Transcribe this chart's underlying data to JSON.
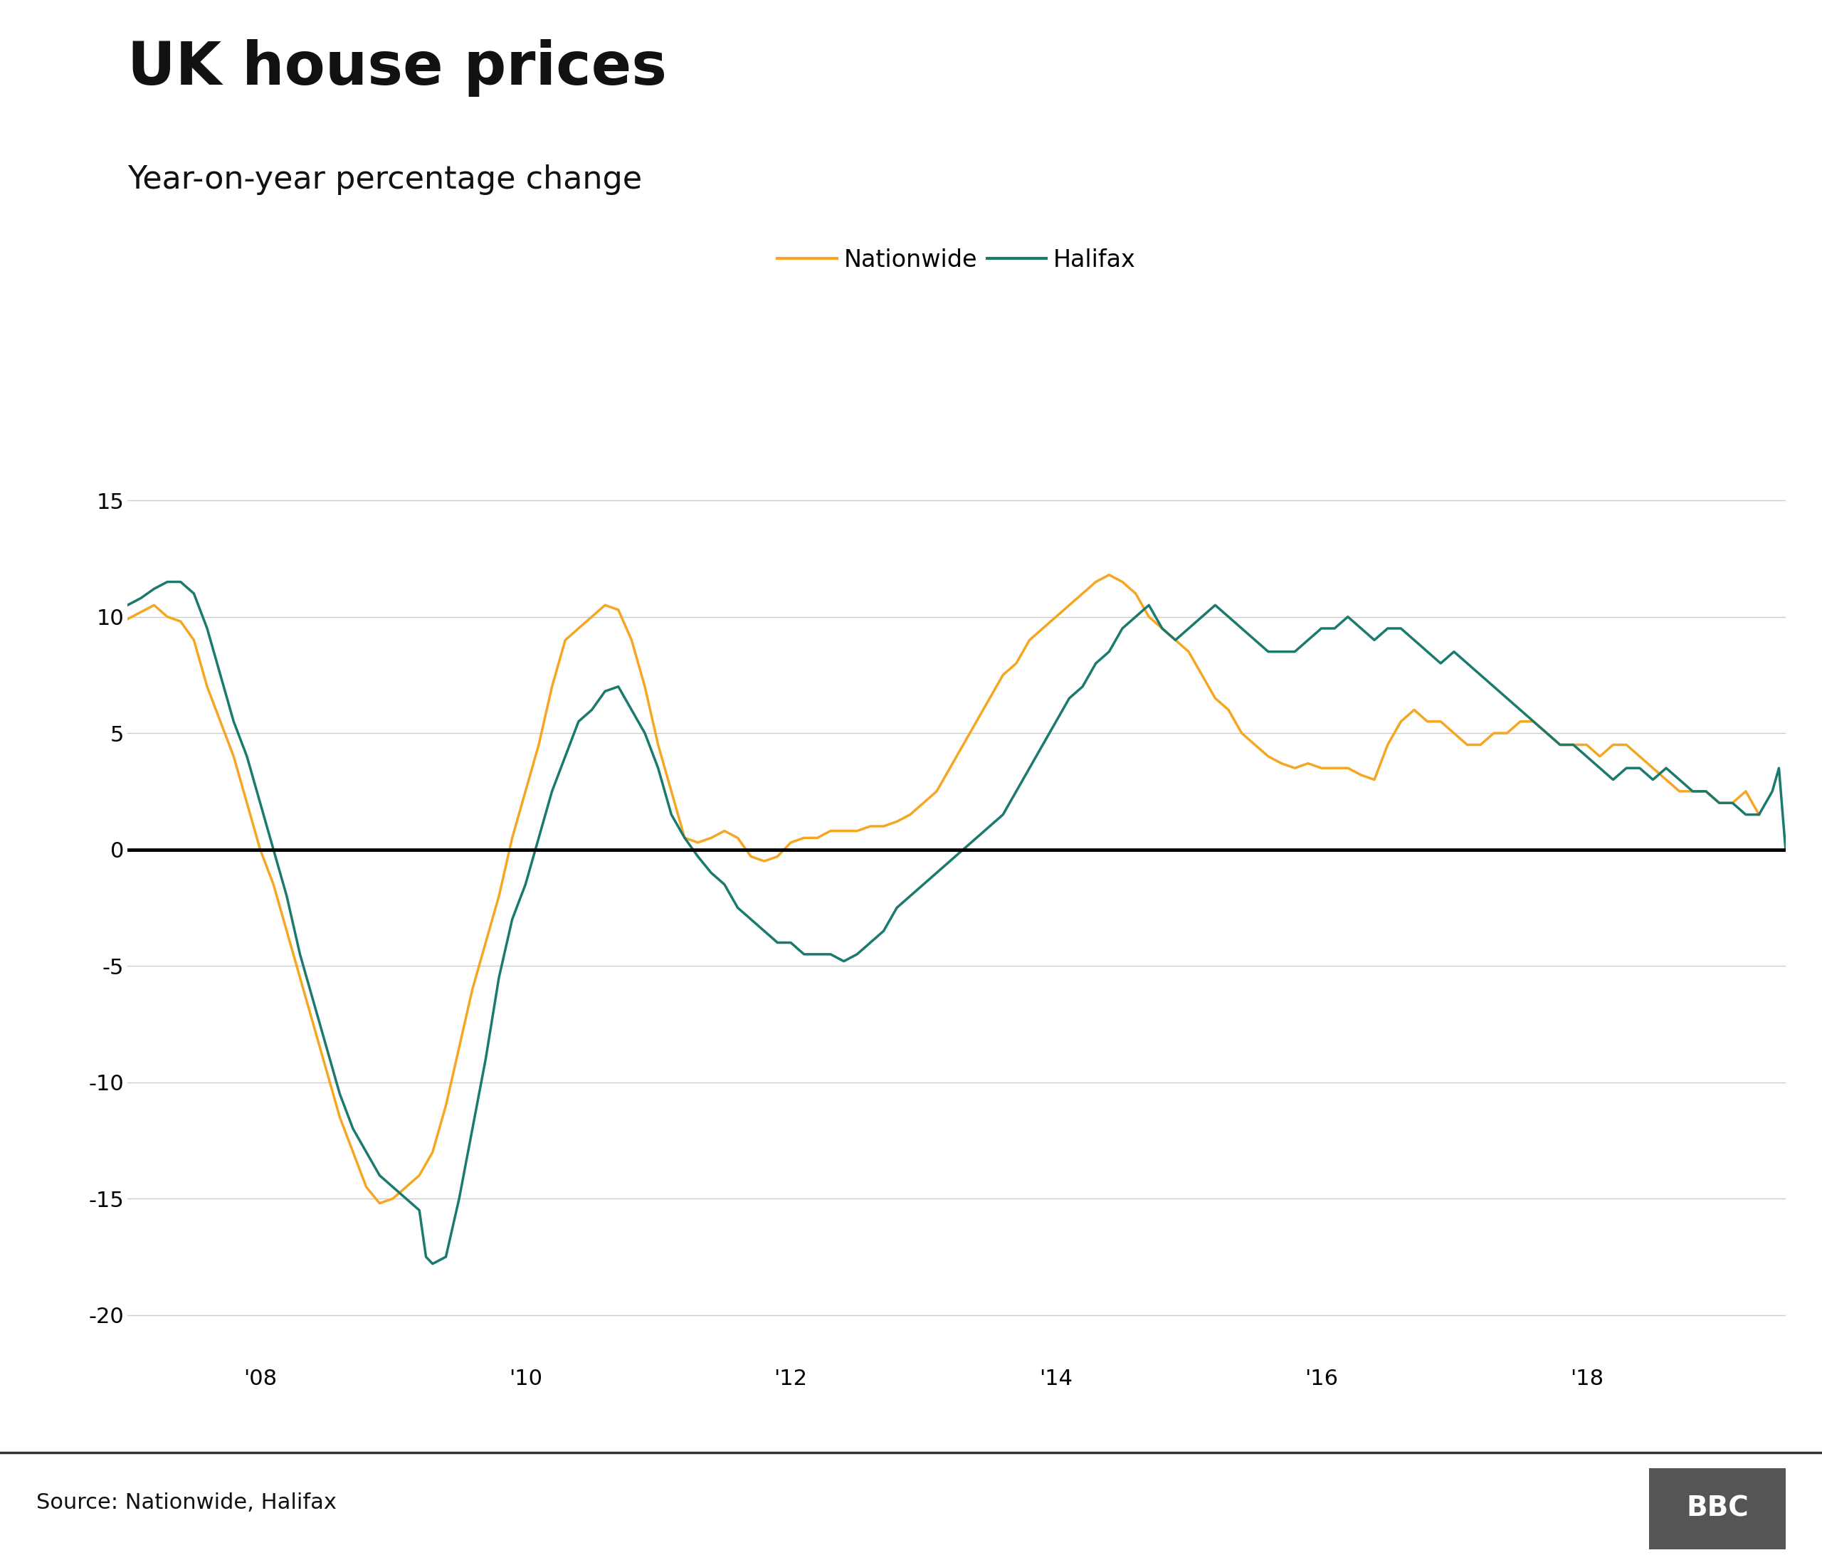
{
  "title": "UK house prices",
  "subtitle": "Year-on-year percentage change",
  "source": "Source: Nationwide, Halifax",
  "nationwide_color": "#F5A623",
  "halifax_color": "#1A7A6E",
  "zero_line_color": "#000000",
  "grid_color": "#cccccc",
  "background_color": "#ffffff",
  "ylim": [
    -22,
    17
  ],
  "yticks": [
    -20,
    -15,
    -10,
    -5,
    0,
    5,
    10,
    15
  ],
  "xtick_positions": [
    2008,
    2010,
    2012,
    2014,
    2016,
    2018
  ],
  "xtick_labels": [
    "'08",
    "'10",
    "'12",
    "'14",
    "'16",
    "'18"
  ],
  "xlim": [
    2007.0,
    2019.5
  ],
  "nationwide_data": [
    [
      2007.0,
      9.9
    ],
    [
      2007.1,
      10.2
    ],
    [
      2007.2,
      10.5
    ],
    [
      2007.3,
      10.0
    ],
    [
      2007.4,
      9.8
    ],
    [
      2007.5,
      9.0
    ],
    [
      2007.6,
      7.0
    ],
    [
      2007.7,
      5.5
    ],
    [
      2007.8,
      4.0
    ],
    [
      2007.9,
      2.0
    ],
    [
      2008.0,
      0.0
    ],
    [
      2008.1,
      -1.5
    ],
    [
      2008.2,
      -3.5
    ],
    [
      2008.3,
      -5.5
    ],
    [
      2008.4,
      -7.5
    ],
    [
      2008.5,
      -9.5
    ],
    [
      2008.6,
      -11.5
    ],
    [
      2008.7,
      -13.0
    ],
    [
      2008.8,
      -14.5
    ],
    [
      2008.9,
      -15.2
    ],
    [
      2009.0,
      -15.0
    ],
    [
      2009.1,
      -14.5
    ],
    [
      2009.2,
      -14.0
    ],
    [
      2009.3,
      -13.0
    ],
    [
      2009.4,
      -11.0
    ],
    [
      2009.5,
      -8.5
    ],
    [
      2009.6,
      -6.0
    ],
    [
      2009.7,
      -4.0
    ],
    [
      2009.8,
      -2.0
    ],
    [
      2009.9,
      0.5
    ],
    [
      2010.0,
      2.5
    ],
    [
      2010.1,
      4.5
    ],
    [
      2010.2,
      7.0
    ],
    [
      2010.3,
      9.0
    ],
    [
      2010.4,
      9.5
    ],
    [
      2010.5,
      10.0
    ],
    [
      2010.6,
      10.5
    ],
    [
      2010.7,
      10.3
    ],
    [
      2010.8,
      9.0
    ],
    [
      2010.9,
      7.0
    ],
    [
      2011.0,
      4.5
    ],
    [
      2011.1,
      2.5
    ],
    [
      2011.2,
      0.5
    ],
    [
      2011.3,
      0.3
    ],
    [
      2011.4,
      0.5
    ],
    [
      2011.5,
      0.8
    ],
    [
      2011.6,
      0.5
    ],
    [
      2011.7,
      -0.3
    ],
    [
      2011.8,
      -0.5
    ],
    [
      2011.9,
      -0.3
    ],
    [
      2012.0,
      0.3
    ],
    [
      2012.1,
      0.5
    ],
    [
      2012.2,
      0.5
    ],
    [
      2012.3,
      0.8
    ],
    [
      2012.4,
      0.8
    ],
    [
      2012.5,
      0.8
    ],
    [
      2012.6,
      1.0
    ],
    [
      2012.7,
      1.0
    ],
    [
      2012.8,
      1.2
    ],
    [
      2012.9,
      1.5
    ],
    [
      2013.0,
      2.0
    ],
    [
      2013.1,
      2.5
    ],
    [
      2013.2,
      3.5
    ],
    [
      2013.3,
      4.5
    ],
    [
      2013.4,
      5.5
    ],
    [
      2013.5,
      6.5
    ],
    [
      2013.6,
      7.5
    ],
    [
      2013.7,
      8.0
    ],
    [
      2013.8,
      9.0
    ],
    [
      2013.9,
      9.5
    ],
    [
      2014.0,
      10.0
    ],
    [
      2014.1,
      10.5
    ],
    [
      2014.2,
      11.0
    ],
    [
      2014.3,
      11.5
    ],
    [
      2014.4,
      11.8
    ],
    [
      2014.5,
      11.5
    ],
    [
      2014.6,
      11.0
    ],
    [
      2014.7,
      10.0
    ],
    [
      2014.8,
      9.5
    ],
    [
      2014.9,
      9.0
    ],
    [
      2015.0,
      8.5
    ],
    [
      2015.1,
      7.5
    ],
    [
      2015.2,
      6.5
    ],
    [
      2015.3,
      6.0
    ],
    [
      2015.4,
      5.0
    ],
    [
      2015.5,
      4.5
    ],
    [
      2015.6,
      4.0
    ],
    [
      2015.7,
      3.7
    ],
    [
      2015.8,
      3.5
    ],
    [
      2015.9,
      3.7
    ],
    [
      2016.0,
      3.5
    ],
    [
      2016.1,
      3.5
    ],
    [
      2016.2,
      3.5
    ],
    [
      2016.3,
      3.2
    ],
    [
      2016.4,
      3.0
    ],
    [
      2016.5,
      4.5
    ],
    [
      2016.6,
      5.5
    ],
    [
      2016.7,
      6.0
    ],
    [
      2016.8,
      5.5
    ],
    [
      2016.9,
      5.5
    ],
    [
      2017.0,
      5.0
    ],
    [
      2017.1,
      4.5
    ],
    [
      2017.2,
      4.5
    ],
    [
      2017.3,
      5.0
    ],
    [
      2017.4,
      5.0
    ],
    [
      2017.5,
      5.5
    ],
    [
      2017.6,
      5.5
    ],
    [
      2017.7,
      5.0
    ],
    [
      2017.8,
      4.5
    ],
    [
      2017.9,
      4.5
    ],
    [
      2018.0,
      4.5
    ],
    [
      2018.1,
      4.0
    ],
    [
      2018.2,
      4.5
    ],
    [
      2018.3,
      4.5
    ],
    [
      2018.4,
      4.0
    ],
    [
      2018.5,
      3.5
    ],
    [
      2018.6,
      3.0
    ],
    [
      2018.7,
      2.5
    ],
    [
      2018.8,
      2.5
    ],
    [
      2018.9,
      2.5
    ],
    [
      2019.0,
      2.0
    ],
    [
      2019.1,
      2.0
    ],
    [
      2019.2,
      2.5
    ],
    [
      2019.3,
      1.5
    ]
  ],
  "halifax_data": [
    [
      2007.0,
      10.5
    ],
    [
      2007.1,
      10.8
    ],
    [
      2007.2,
      11.2
    ],
    [
      2007.3,
      11.5
    ],
    [
      2007.4,
      11.5
    ],
    [
      2007.5,
      11.0
    ],
    [
      2007.6,
      9.5
    ],
    [
      2007.7,
      7.5
    ],
    [
      2007.8,
      5.5
    ],
    [
      2007.9,
      4.0
    ],
    [
      2008.0,
      2.0
    ],
    [
      2008.1,
      0.0
    ],
    [
      2008.2,
      -2.0
    ],
    [
      2008.3,
      -4.5
    ],
    [
      2008.4,
      -6.5
    ],
    [
      2008.5,
      -8.5
    ],
    [
      2008.6,
      -10.5
    ],
    [
      2008.7,
      -12.0
    ],
    [
      2008.8,
      -13.0
    ],
    [
      2008.9,
      -14.0
    ],
    [
      2009.0,
      -14.5
    ],
    [
      2009.1,
      -15.0
    ],
    [
      2009.2,
      -15.5
    ],
    [
      2009.25,
      -17.5
    ],
    [
      2009.3,
      -17.8
    ],
    [
      2009.4,
      -17.5
    ],
    [
      2009.5,
      -15.0
    ],
    [
      2009.6,
      -12.0
    ],
    [
      2009.7,
      -9.0
    ],
    [
      2009.8,
      -5.5
    ],
    [
      2009.9,
      -3.0
    ],
    [
      2010.0,
      -1.5
    ],
    [
      2010.1,
      0.5
    ],
    [
      2010.2,
      2.5
    ],
    [
      2010.3,
      4.0
    ],
    [
      2010.4,
      5.5
    ],
    [
      2010.5,
      6.0
    ],
    [
      2010.6,
      6.8
    ],
    [
      2010.7,
      7.0
    ],
    [
      2010.8,
      6.0
    ],
    [
      2010.9,
      5.0
    ],
    [
      2011.0,
      3.5
    ],
    [
      2011.1,
      1.5
    ],
    [
      2011.2,
      0.5
    ],
    [
      2011.3,
      -0.3
    ],
    [
      2011.4,
      -1.0
    ],
    [
      2011.5,
      -1.5
    ],
    [
      2011.6,
      -2.5
    ],
    [
      2011.7,
      -3.0
    ],
    [
      2011.8,
      -3.5
    ],
    [
      2011.9,
      -4.0
    ],
    [
      2012.0,
      -4.0
    ],
    [
      2012.1,
      -4.5
    ],
    [
      2012.2,
      -4.5
    ],
    [
      2012.3,
      -4.5
    ],
    [
      2012.4,
      -4.8
    ],
    [
      2012.5,
      -4.5
    ],
    [
      2012.6,
      -4.0
    ],
    [
      2012.7,
      -3.5
    ],
    [
      2012.8,
      -2.5
    ],
    [
      2012.9,
      -2.0
    ],
    [
      2013.0,
      -1.5
    ],
    [
      2013.1,
      -1.0
    ],
    [
      2013.2,
      -0.5
    ],
    [
      2013.3,
      0.0
    ],
    [
      2013.4,
      0.5
    ],
    [
      2013.5,
      1.0
    ],
    [
      2013.6,
      1.5
    ],
    [
      2013.7,
      2.5
    ],
    [
      2013.8,
      3.5
    ],
    [
      2013.9,
      4.5
    ],
    [
      2014.0,
      5.5
    ],
    [
      2014.1,
      6.5
    ],
    [
      2014.2,
      7.0
    ],
    [
      2014.3,
      8.0
    ],
    [
      2014.4,
      8.5
    ],
    [
      2014.5,
      9.5
    ],
    [
      2014.6,
      10.0
    ],
    [
      2014.7,
      10.5
    ],
    [
      2014.8,
      9.5
    ],
    [
      2014.9,
      9.0
    ],
    [
      2015.0,
      9.5
    ],
    [
      2015.1,
      10.0
    ],
    [
      2015.2,
      10.5
    ],
    [
      2015.3,
      10.0
    ],
    [
      2015.4,
      9.5
    ],
    [
      2015.5,
      9.0
    ],
    [
      2015.6,
      8.5
    ],
    [
      2015.7,
      8.5
    ],
    [
      2015.8,
      8.5
    ],
    [
      2015.9,
      9.0
    ],
    [
      2016.0,
      9.5
    ],
    [
      2016.1,
      9.5
    ],
    [
      2016.2,
      10.0
    ],
    [
      2016.3,
      9.5
    ],
    [
      2016.4,
      9.0
    ],
    [
      2016.5,
      9.5
    ],
    [
      2016.6,
      9.5
    ],
    [
      2016.7,
      9.0
    ],
    [
      2016.8,
      8.5
    ],
    [
      2016.9,
      8.0
    ],
    [
      2017.0,
      8.5
    ],
    [
      2017.1,
      8.0
    ],
    [
      2017.2,
      7.5
    ],
    [
      2017.3,
      7.0
    ],
    [
      2017.4,
      6.5
    ],
    [
      2017.5,
      6.0
    ],
    [
      2017.6,
      5.5
    ],
    [
      2017.7,
      5.0
    ],
    [
      2017.8,
      4.5
    ],
    [
      2017.9,
      4.5
    ],
    [
      2018.0,
      4.0
    ],
    [
      2018.1,
      3.5
    ],
    [
      2018.2,
      3.0
    ],
    [
      2018.3,
      3.5
    ],
    [
      2018.4,
      3.5
    ],
    [
      2018.5,
      3.0
    ],
    [
      2018.6,
      3.5
    ],
    [
      2018.7,
      3.0
    ],
    [
      2018.8,
      2.5
    ],
    [
      2018.9,
      2.5
    ],
    [
      2019.0,
      2.0
    ],
    [
      2019.1,
      2.0
    ],
    [
      2019.2,
      1.5
    ],
    [
      2019.25,
      1.5
    ],
    [
      2019.3,
      1.5
    ],
    [
      2019.35,
      2.0
    ],
    [
      2019.4,
      2.5
    ],
    [
      2019.45,
      3.5
    ],
    [
      2019.5,
      0.0
    ]
  ]
}
